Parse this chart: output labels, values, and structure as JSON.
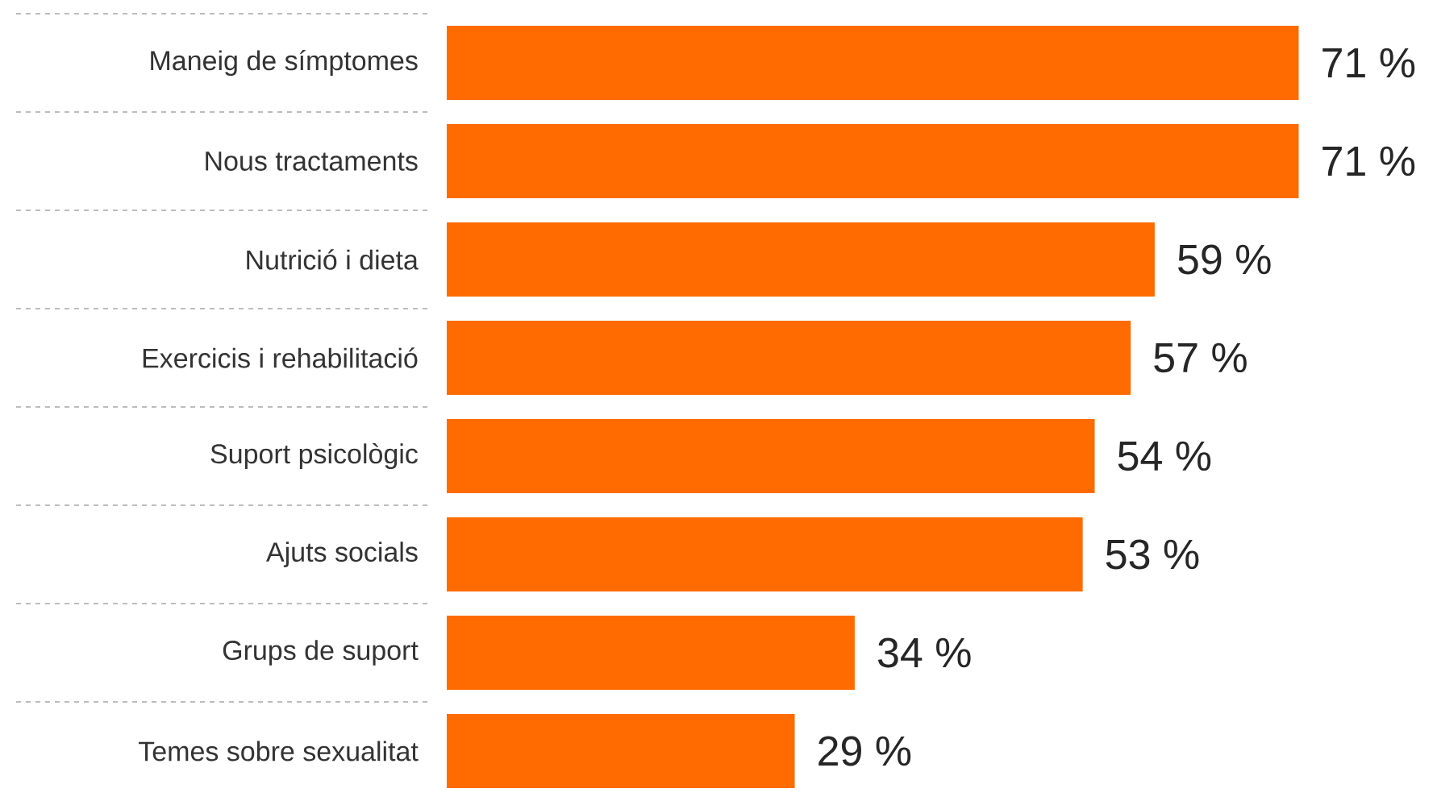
{
  "chart_data": {
    "type": "bar",
    "orientation": "horizontal",
    "categories": [
      "Maneig de símptomes",
      "Nous tractaments",
      "Nutrició i dieta",
      "Exercicis i rehabilitació",
      "Suport psicològic",
      "Ajuts socials",
      "Grups de suport",
      "Temes sobre sexualitat"
    ],
    "values": [
      71,
      71,
      59,
      57,
      54,
      53,
      34,
      29
    ],
    "value_labels": [
      "71 %",
      "71 %",
      "59 %",
      "57 %",
      "54 %",
      "53 %",
      "34 %",
      "29 %"
    ],
    "color": "#ff6b00"
  }
}
